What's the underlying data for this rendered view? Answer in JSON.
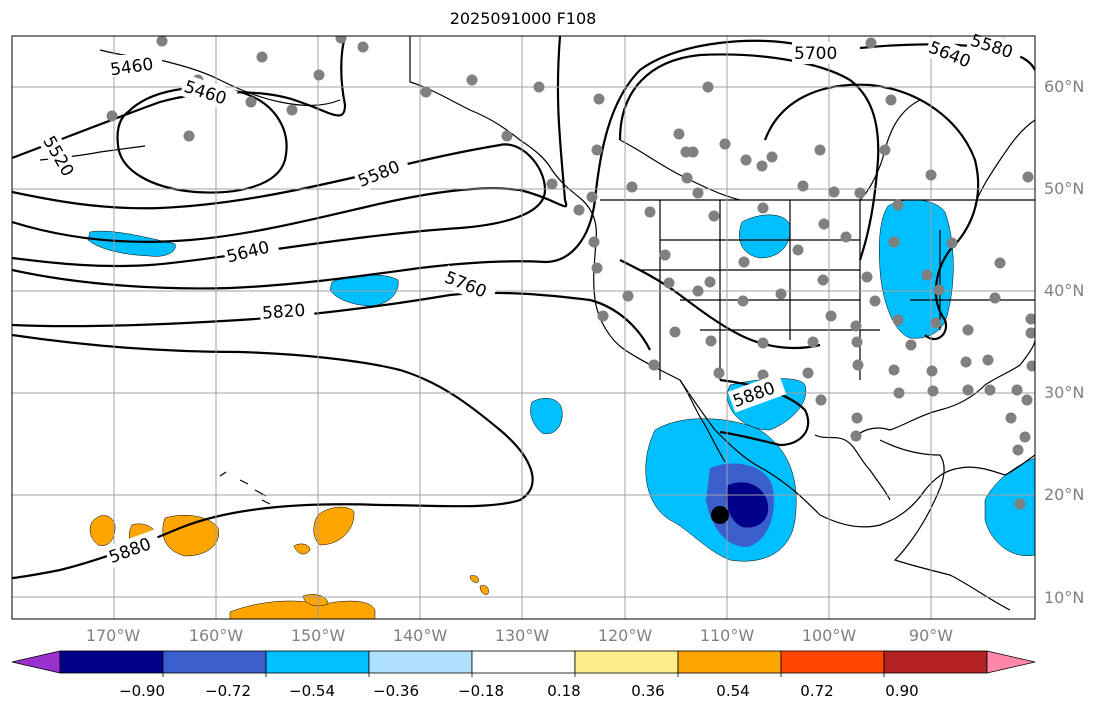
{
  "title": "2025091000 F108",
  "lat_labels": [
    "60°N",
    "50°N",
    "40°N",
    "30°N",
    "20°N",
    "10°N"
  ],
  "lon_labels": [
    "170°W",
    "160°W",
    "150°W",
    "140°W",
    "130°W",
    "120°W",
    "110°W",
    "100°W",
    "90°W"
  ],
  "contour_labels": [
    "5460",
    "5460",
    "5520",
    "5580",
    "5580",
    "5640",
    "5640",
    "5700",
    "5760",
    "5820",
    "5880",
    "5880"
  ],
  "colorbar": {
    "ticks": [
      "−0.90",
      "−0.72",
      "−0.54",
      "−0.36",
      "−0.18",
      "0.18",
      "0.36",
      "0.54",
      "0.72",
      "0.90"
    ],
    "colors": [
      "#9932cc",
      "#00008b",
      "#3a5fcd",
      "#00bfff",
      "#b0e2ff",
      "#ffffff",
      "#ffec8b",
      "#ffa500",
      "#ff4500",
      "#b22222",
      "#ff88aa"
    ]
  },
  "storm_marker": "tropical-cyclone-center"
}
